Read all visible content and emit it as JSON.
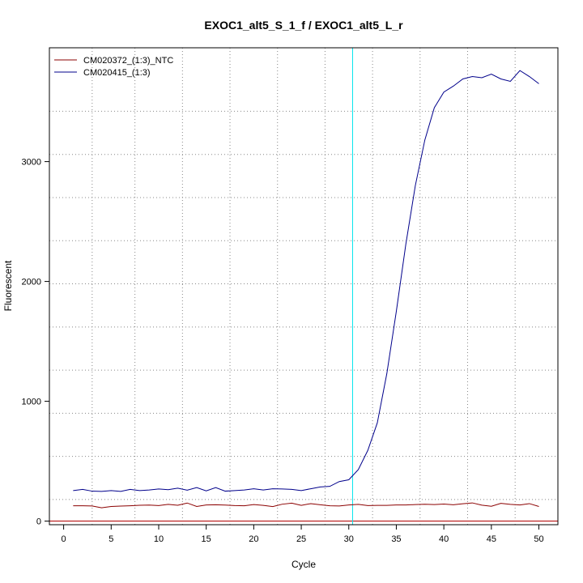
{
  "chart_data": {
    "type": "line",
    "title": "EXOC1_alt5_S_1_f / EXOC1_alt5_L_r",
    "xlabel": "Cycle",
    "ylabel": "Fluorescent",
    "xlim": [
      -1.5,
      52
    ],
    "ylim": [
      -30,
      3950
    ],
    "xticks": [
      0,
      5,
      10,
      15,
      20,
      25,
      30,
      35,
      40,
      45,
      50
    ],
    "yticks": [
      0,
      1000,
      2000,
      3000
    ],
    "x_grid": [
      3,
      7.5,
      12.5,
      17.5,
      22.5,
      27.5,
      32.5,
      37.5,
      42.5,
      47.5
    ],
    "y_grid": [
      180,
      540,
      900,
      1260,
      1620,
      1980,
      2340,
      2700,
      3060,
      3420
    ],
    "grid": true,
    "threshold_x": 30.4,
    "threshold_color": "#00e5ee",
    "baseline_y": 0,
    "baseline_color": "#b00000",
    "legend_position": "top-left",
    "series": [
      {
        "name": "CM020372_(1:3)_NTC",
        "color": "#8b0000",
        "x": [
          1,
          2,
          3,
          4,
          5,
          6,
          7,
          8,
          9,
          10,
          11,
          12,
          13,
          14,
          15,
          16,
          17,
          18,
          19,
          20,
          21,
          22,
          23,
          24,
          25,
          26,
          27,
          28,
          29,
          30,
          31,
          32,
          33,
          34,
          35,
          36,
          37,
          38,
          39,
          40,
          41,
          42,
          43,
          44,
          45,
          46,
          47,
          48,
          49,
          50
        ],
        "y": [
          128,
          128,
          126,
          111,
          122,
          125,
          128,
          132,
          134,
          130,
          140,
          132,
          151,
          122,
          135,
          136,
          134,
          130,
          128,
          138,
          131,
          121,
          141,
          150,
          131,
          146,
          136,
          128,
          126,
          135,
          140,
          130,
          131,
          131,
          135,
          135,
          138,
          141,
          138,
          142,
          136,
          145,
          152,
          133,
          124,
          148,
          140,
          135,
          146,
          122
        ]
      },
      {
        "name": "CM020415_(1:3)",
        "color": "#00008b",
        "x": [
          1,
          2,
          3,
          4,
          5,
          6,
          7,
          8,
          9,
          10,
          11,
          12,
          13,
          14,
          15,
          16,
          17,
          18,
          19,
          20,
          21,
          22,
          23,
          24,
          25,
          26,
          27,
          28,
          29,
          30,
          31,
          32,
          33,
          34,
          35,
          36,
          37,
          38,
          39,
          40,
          41,
          42,
          43,
          44,
          45,
          46,
          47,
          48,
          49,
          50
        ],
        "y": [
          255,
          265,
          250,
          248,
          255,
          248,
          265,
          255,
          260,
          268,
          262,
          275,
          258,
          280,
          252,
          280,
          250,
          255,
          260,
          270,
          260,
          270,
          268,
          265,
          255,
          270,
          285,
          290,
          330,
          345,
          430,
          590,
          820,
          1230,
          1750,
          2310,
          2800,
          3180,
          3450,
          3580,
          3630,
          3690,
          3710,
          3700,
          3730,
          3690,
          3670,
          3760,
          3710,
          3650
        ]
      }
    ]
  }
}
